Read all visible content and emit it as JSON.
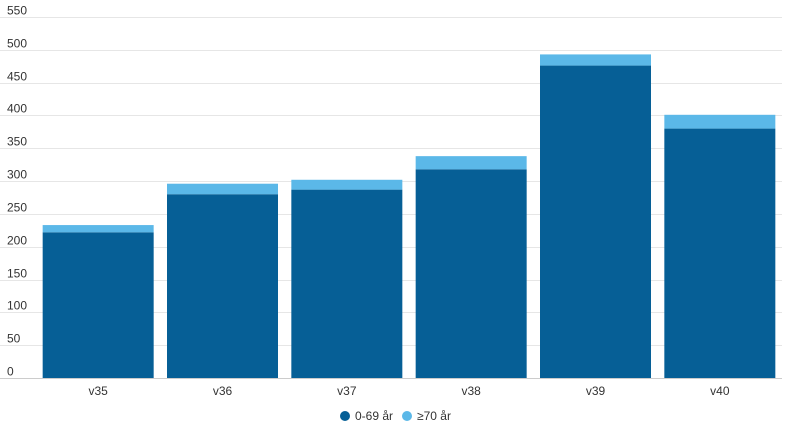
{
  "chart_data": {
    "type": "bar",
    "stacked": true,
    "categories": [
      "v35",
      "v36",
      "v37",
      "v38",
      "v39",
      "v40"
    ],
    "series": [
      {
        "name": "0-69 år",
        "values": [
          222,
          280,
          287,
          318,
          476,
          380
        ],
        "color": "#065f96"
      },
      {
        "name": "≥70 år",
        "values": [
          11,
          16,
          15,
          20,
          17,
          21
        ],
        "color": "#5bb8e8"
      }
    ],
    "ylim": [
      0,
      550
    ],
    "yticks": [
      0,
      50,
      100,
      150,
      200,
      250,
      300,
      350,
      400,
      450,
      500,
      550
    ],
    "grid": true,
    "legend_position": "bottom-center"
  }
}
